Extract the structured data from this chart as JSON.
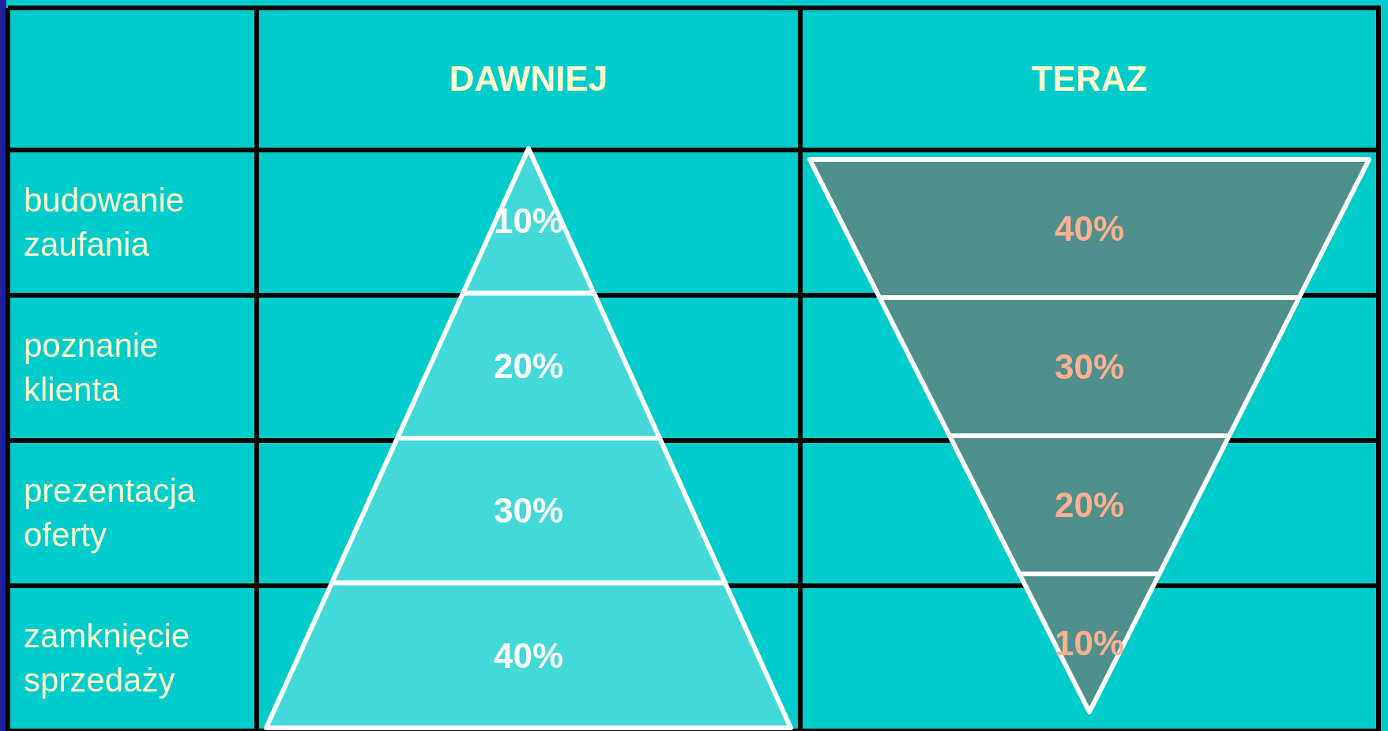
{
  "chart_data": {
    "type": "other",
    "categories": [
      "budowanie zaufania",
      "poznanie klienta",
      "prezentacja oferty",
      "zamknięcie sprzedaży"
    ],
    "series": [
      {
        "name": "DAWNIEJ",
        "color": "#44d9d9",
        "values": [
          10,
          20,
          30,
          40
        ],
        "value_labels": [
          "10%",
          "20%",
          "30%",
          "40%"
        ]
      },
      {
        "name": "TERAZ",
        "color": "#4f8f8c",
        "values": [
          40,
          30,
          20,
          10
        ],
        "value_labels": [
          "40%",
          "30%",
          "20%",
          "10%"
        ]
      }
    ]
  }
}
